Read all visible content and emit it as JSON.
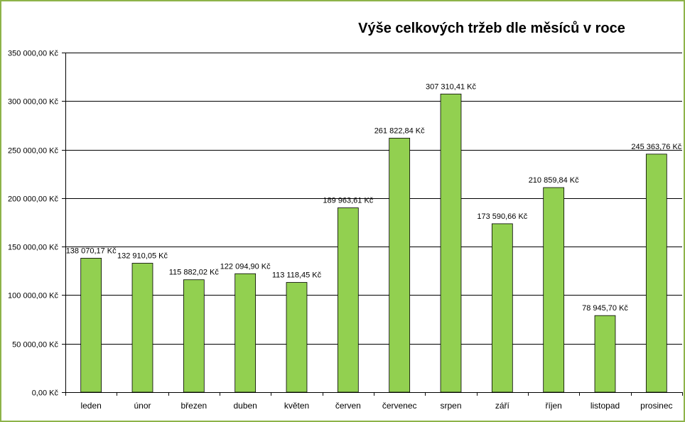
{
  "chart_data": {
    "type": "bar",
    "title": "Výše celkových tržeb dle měsíců v roce",
    "xlabel": "",
    "ylabel": "",
    "categories": [
      "leden",
      "únor",
      "březen",
      "duben",
      "květen",
      "červen",
      "červenec",
      "srpen",
      "září",
      "říjen",
      "listopad",
      "prosinec"
    ],
    "values": [
      138070.17,
      132910.05,
      115882.02,
      122094.9,
      113118.45,
      189963.61,
      261822.84,
      307310.41,
      173590.66,
      210859.84,
      78945.7,
      245363.76
    ],
    "data_labels": [
      "138 070,17 Kč",
      "132 910,05 Kč",
      "115 882,02 Kč",
      "122 094,90 Kč",
      "113 118,45 Kč",
      "189 963,61 Kč",
      "261 822,84 Kč",
      "307 310,41 Kč",
      "173 590,66 Kč",
      "210 859,84 Kč",
      "78 945,70 Kč",
      "245 363,76 Kč"
    ],
    "ylim": [
      0,
      350000
    ],
    "yticks": [
      0,
      50000,
      100000,
      150000,
      200000,
      250000,
      300000,
      350000
    ],
    "ytick_labels": [
      "0,00 Kč",
      "50 000,00 Kč",
      "100 000,00 Kč",
      "150 000,00 Kč",
      "200 000,00 Kč",
      "250 000,00 Kč",
      "300 000,00 Kč",
      "350 000,00 Kč"
    ],
    "grid": true,
    "legend": "none",
    "colors": {
      "bar_fill": "#92d050",
      "bar_stroke": "#000000",
      "grid": "#000000",
      "frame": "#8db34a"
    }
  }
}
